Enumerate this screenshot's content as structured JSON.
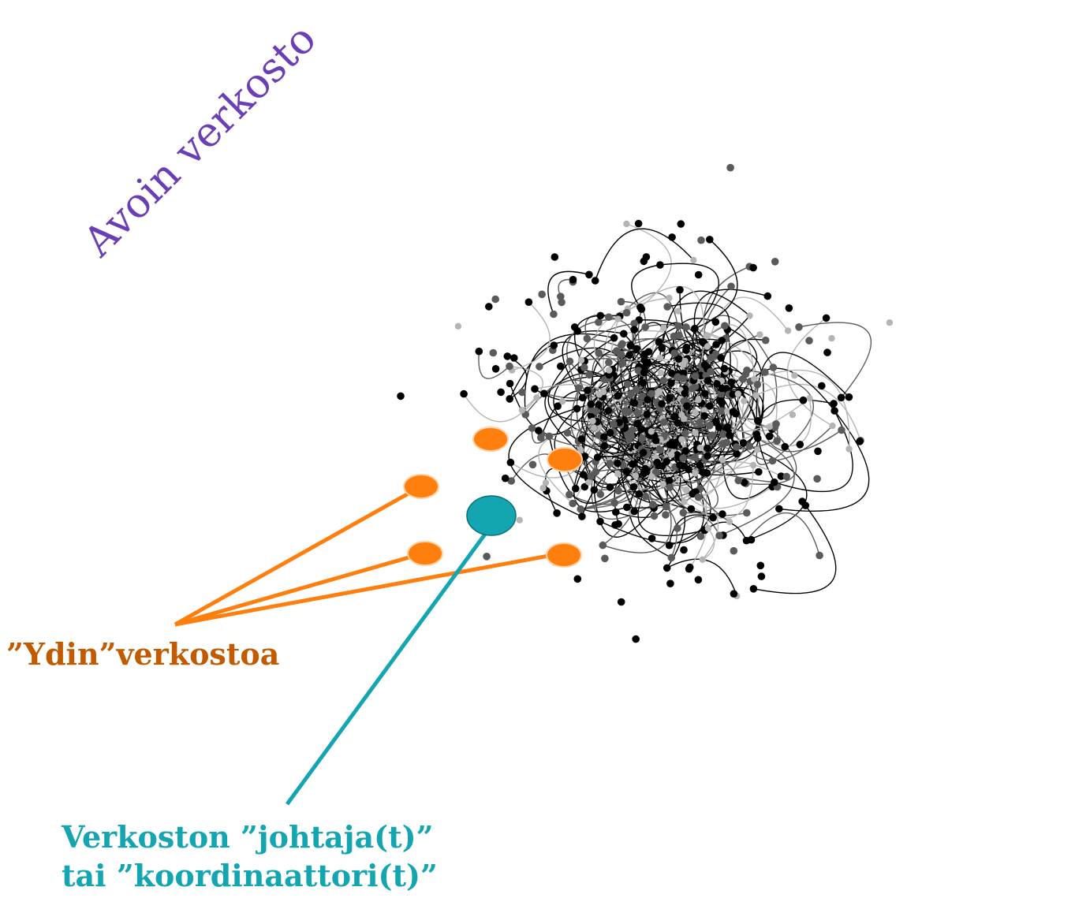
{
  "labels": {
    "open_network": "Avoin verkosto",
    "core_network": "”Ydin”verkostoa",
    "leader_line1": "Verkoston ”johtaja(t)”",
    "leader_line2": "tai ”koordinaattori(t)”"
  },
  "colors": {
    "open_network_text": "#6a3fb5",
    "core": "#ff7f0e",
    "core_text": "#c25a00",
    "leader": "#13a5b0",
    "node_dark": "#000000",
    "node_mid": "#5a5a5a",
    "node_light": "#b4b4b4"
  },
  "diagram": {
    "type": "network",
    "core_node_count": 5,
    "leader_node_count": 1
  }
}
